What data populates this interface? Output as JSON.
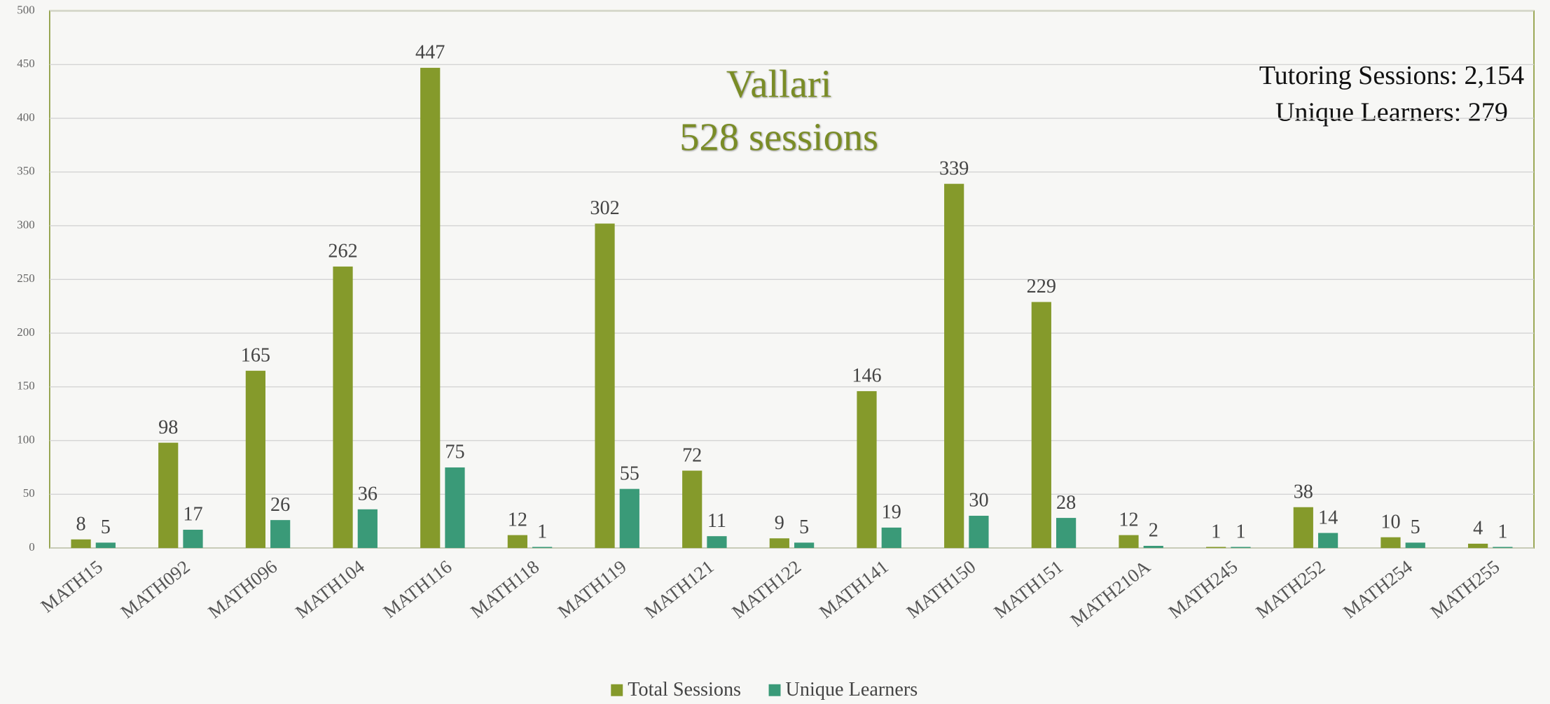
{
  "chart_data": {
    "type": "bar",
    "title": "Vallari",
    "subtitle": "528 sessions",
    "annotations": [
      "Tutoring Sessions: 2,154",
      "Unique Learners: 279"
    ],
    "categories": [
      "MATH15",
      "MATH092",
      "MATH096",
      "MATH104",
      "MATH116",
      "MATH118",
      "MATH119",
      "MATH121",
      "MATH122",
      "MATH141",
      "MATH150",
      "MATH151",
      "MATH210A",
      "MATH245",
      "MATH252",
      "MATH254",
      "MATH255"
    ],
    "series": [
      {
        "name": "Total Sessions",
        "color": "#859a2b",
        "values": [
          8,
          98,
          165,
          262,
          447,
          12,
          302,
          72,
          9,
          146,
          339,
          229,
          12,
          1,
          38,
          10,
          4
        ]
      },
      {
        "name": "Unique Learners",
        "color": "#3a9a78",
        "values": [
          5,
          17,
          26,
          36,
          75,
          1,
          55,
          11,
          5,
          19,
          30,
          28,
          2,
          1,
          14,
          5,
          1
        ]
      }
    ],
    "ylim": [
      0,
      500
    ],
    "yticks": [
      0,
      50,
      100,
      150,
      200,
      250,
      300,
      350,
      400,
      450,
      500
    ],
    "grid": true,
    "legend": "bottom"
  }
}
